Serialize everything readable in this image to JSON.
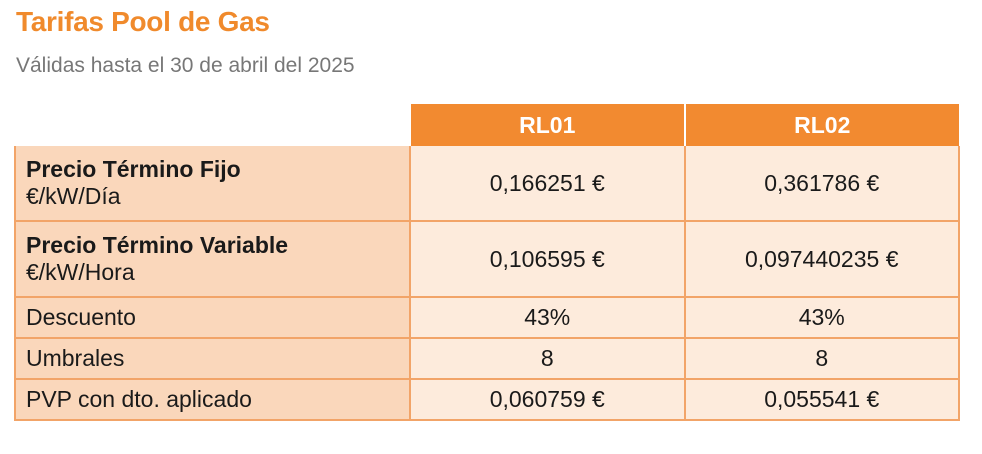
{
  "header": {
    "title": "Tarifas Pool de Gas",
    "subtitle": "Válidas hasta el 30 de abril del 2025"
  },
  "table": {
    "columns": [
      "RL01",
      "RL02"
    ],
    "rows": [
      {
        "label": "Precio Término Fijo",
        "unit": "€/kW/Día",
        "values": [
          "0,166251 €",
          "0,361786 €"
        ]
      },
      {
        "label": "Precio Término Variable",
        "unit": "€/kW/Hora",
        "values": [
          "0,106595 €",
          "0,097440235 €"
        ]
      },
      {
        "label": "Descuento",
        "values": [
          "43%",
          "43%"
        ]
      },
      {
        "label": "Umbrales",
        "values": [
          "8",
          "8"
        ]
      },
      {
        "label": "PVP con dto. aplicado",
        "values": [
          "0,060759 €",
          "0,055541 €"
        ]
      }
    ]
  },
  "colors": {
    "accent": "#f08a2c",
    "header_bg": "#f28a30",
    "label_bg": "#fad7bb",
    "value_bg": "#fdebdc"
  }
}
